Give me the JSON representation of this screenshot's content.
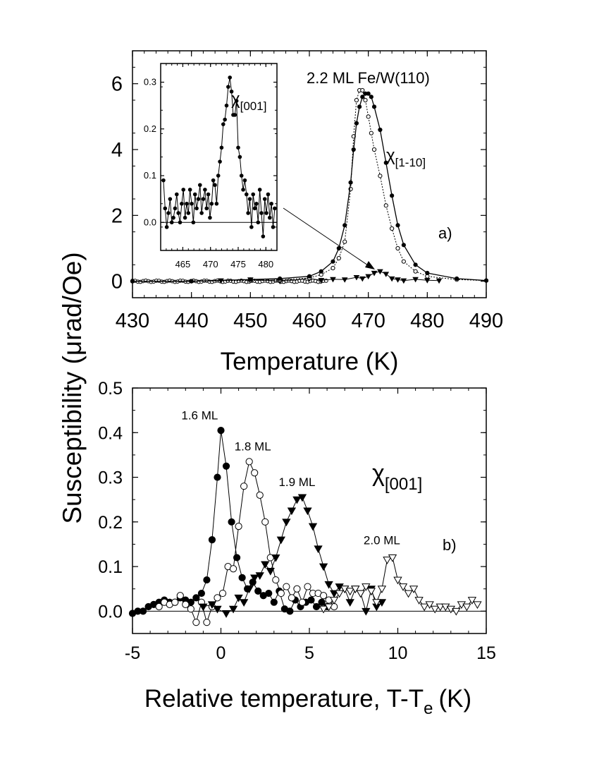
{
  "y_axis_label": "Susceptibility (μrad/Oe)",
  "chart_data": [
    {
      "panel": "a)",
      "type": "scatter",
      "title": "2.2 ML Fe/W(110)",
      "xlabel": "Temperature (K)",
      "ylabel": "Susceptibility (μrad/Oe)",
      "xlim": [
        430,
        490
      ],
      "ylim": [
        -0.5,
        7
      ],
      "xticks": [
        430,
        440,
        450,
        460,
        470,
        480,
        490
      ],
      "yticks": [
        0,
        2,
        4,
        6
      ],
      "series_label": {
        "symbol": "χ",
        "sub": "[1-10]"
      },
      "series": [
        {
          "name": "χ[1-10] filled",
          "style": "filled circles, solid line",
          "x": [
            430,
            440,
            450,
            455,
            460,
            462,
            464,
            465,
            466,
            467,
            467.5,
            468,
            468.5,
            469,
            469.5,
            470,
            470.5,
            471,
            472,
            473,
            474,
            475,
            476,
            478,
            480,
            485,
            490
          ],
          "values": [
            0,
            0,
            0.05,
            0.08,
            0.15,
            0.3,
            0.6,
            1.0,
            1.7,
            3.0,
            4.0,
            4.8,
            5.3,
            5.6,
            5.7,
            5.7,
            5.6,
            5.3,
            4.6,
            3.6,
            2.6,
            1.7,
            1.1,
            0.5,
            0.25,
            0.08,
            0.02
          ]
        },
        {
          "name": "χ[1-10] open",
          "style": "open circles, dotted line",
          "x": [
            430,
            440,
            450,
            455,
            460,
            462,
            464,
            465,
            466,
            467,
            467.5,
            468,
            468.5,
            469,
            469.5,
            470,
            470.5,
            471,
            472,
            473,
            474,
            475,
            476,
            478,
            480,
            485,
            490
          ],
          "values": [
            0,
            0,
            0.02,
            0.04,
            0.1,
            0.2,
            0.4,
            0.7,
            1.2,
            2.8,
            4.4,
            5.5,
            5.8,
            5.8,
            5.5,
            5.0,
            4.5,
            4.0,
            3.2,
            2.3,
            1.6,
            1.0,
            0.6,
            0.3,
            0.15,
            0.05,
            0.02
          ]
        },
        {
          "name": "χ[001] triangles",
          "style": "filled triangles",
          "x": [
            445,
            450,
            455,
            460,
            462,
            464,
            466,
            468,
            469,
            470,
            471,
            472,
            473,
            474,
            475,
            476,
            478,
            480,
            482
          ],
          "values": [
            0.02,
            0.05,
            0.0,
            0.08,
            0.03,
            0.06,
            0.05,
            0.12,
            0.08,
            0.15,
            0.25,
            0.3,
            0.22,
            0.08,
            0.05,
            0.02,
            0.06,
            0.03,
            0.02
          ]
        }
      ]
    },
    {
      "panel": "inset",
      "type": "line",
      "xlim": [
        461,
        482
      ],
      "ylim": [
        -0.06,
        0.34
      ],
      "xticks": [
        465,
        470,
        475,
        480
      ],
      "yticks": [
        0.0,
        0.1,
        0.2,
        0.3
      ],
      "series_label": {
        "symbol": "χ",
        "sub": "[001]"
      },
      "series": [
        {
          "name": "χ[001]",
          "style": "filled circles, solid line",
          "x": [
            461.5,
            461.8,
            462.1,
            462.4,
            462.7,
            463.0,
            463.3,
            463.6,
            463.9,
            464.2,
            464.5,
            464.8,
            465.1,
            465.4,
            465.7,
            466.0,
            466.3,
            466.6,
            466.9,
            467.2,
            467.5,
            467.8,
            468.1,
            468.4,
            468.7,
            469.0,
            469.3,
            469.6,
            469.9,
            470.2,
            470.5,
            470.8,
            471.1,
            471.4,
            471.7,
            472.0,
            472.3,
            472.6,
            472.9,
            473.2,
            473.5,
            473.8,
            474.1,
            474.4,
            474.7,
            475.0,
            475.3,
            475.6,
            475.9,
            476.2,
            476.5,
            476.8,
            477.1,
            477.4,
            477.7,
            478.0,
            478.3,
            478.6,
            478.9,
            479.2,
            479.5,
            479.8,
            480.1,
            480.4,
            480.7,
            481.0,
            481.3,
            481.6
          ],
          "values": [
            0.09,
            0.03,
            -0.01,
            0.02,
            0.05,
            0.0,
            0.01,
            0.03,
            0.06,
            0.02,
            0.0,
            0.04,
            0.07,
            0.01,
            0.04,
            0.02,
            0.07,
            0.04,
            0.0,
            0.06,
            0.03,
            0.05,
            0.08,
            0.02,
            0.05,
            0.07,
            0.03,
            0.06,
            0.01,
            0.04,
            0.09,
            0.08,
            0.04,
            0.1,
            0.13,
            0.16,
            0.21,
            0.22,
            0.25,
            0.29,
            0.31,
            0.28,
            0.23,
            0.23,
            0.26,
            0.16,
            0.14,
            0.1,
            0.07,
            0.09,
            0.06,
            0.02,
            0.05,
            -0.01,
            0.06,
            0.03,
            0.04,
            0.0,
            0.07,
            0.02,
            -0.03,
            0.05,
            0.02,
            0.06,
            0.01,
            0.04,
            -0.01,
            0.03
          ]
        }
      ]
    },
    {
      "panel": "b)",
      "type": "line",
      "xlabel": "Relative temperature, T-T",
      "xlabel_sub": "e",
      "xlabel_unit": "(K)",
      "ylabel": "Susceptibility (μrad/Oe)",
      "xlim": [
        -5,
        15
      ],
      "ylim": [
        -0.05,
        0.5
      ],
      "xticks": [
        -5,
        0,
        5,
        10,
        15
      ],
      "yticks": [
        0.0,
        0.1,
        0.2,
        0.3,
        0.4,
        0.5
      ],
      "series_label": {
        "symbol": "χ",
        "sub": "[001]"
      },
      "series": [
        {
          "name": "1.6 ML",
          "marker": "filled-circle",
          "x": [
            -5.0,
            -4.7,
            -4.4,
            -4.1,
            -3.8,
            -3.5,
            -3.2,
            -2.9,
            -2.6,
            -2.3,
            -2.0,
            -1.7,
            -1.4,
            -1.1,
            -0.8,
            -0.5,
            -0.2,
            0.0,
            0.3,
            0.6,
            0.9,
            1.2,
            1.5,
            1.8,
            2.1,
            2.4,
            2.7,
            3.0,
            3.3,
            3.6,
            3.9,
            4.2,
            4.5,
            4.8,
            5.1,
            5.4,
            5.7,
            6.0
          ],
          "values": [
            -0.005,
            0.0,
            0.0,
            0.01,
            0.015,
            0.02,
            0.025,
            0.02,
            0.02,
            0.03,
            0.025,
            0.02,
            0.03,
            0.04,
            0.07,
            0.16,
            0.3,
            0.405,
            0.325,
            0.2,
            0.12,
            0.075,
            0.05,
            0.065,
            0.045,
            0.035,
            0.04,
            0.02,
            0.045,
            0.005,
            0.0,
            0.025,
            0.01,
            0.02,
            0.025,
            0.01,
            0.02,
            0.01
          ]
        },
        {
          "name": "1.8 ML",
          "marker": "open-circle",
          "x": [
            -3.5,
            -3.2,
            -2.9,
            -2.6,
            -2.3,
            -2.0,
            -1.7,
            -1.4,
            -1.1,
            -0.8,
            -0.5,
            -0.2,
            0.1,
            0.4,
            0.7,
            1.0,
            1.3,
            1.6,
            1.9,
            2.2,
            2.5,
            2.8,
            3.1,
            3.4,
            3.7,
            4.0,
            4.3,
            4.6,
            4.9,
            5.2,
            5.5,
            5.8,
            6.1,
            6.4
          ],
          "values": [
            0.01,
            0.02,
            0.015,
            0.02,
            0.035,
            0.015,
            0.005,
            -0.025,
            0.02,
            -0.025,
            0.01,
            0.03,
            0.04,
            0.1,
            0.095,
            0.19,
            0.28,
            0.335,
            0.31,
            0.26,
            0.2,
            0.12,
            0.07,
            0.04,
            0.055,
            0.03,
            0.05,
            0.02,
            0.055,
            0.04,
            0.04,
            0.035,
            0.025,
            0.01
          ]
        },
        {
          "name": "1.9 ML",
          "marker": "filled-triangle-down",
          "x": [
            -1.0,
            -0.5,
            -0.2,
            0.3,
            0.7,
            1.0,
            1.3,
            1.6,
            1.9,
            2.2,
            2.5,
            2.8,
            3.1,
            3.4,
            3.7,
            4.0,
            4.3,
            4.6,
            4.9,
            5.2,
            5.5,
            5.8,
            6.1,
            6.4,
            6.7,
            7.0,
            7.3,
            7.6,
            7.9,
            8.2,
            8.5,
            8.8,
            9.1
          ],
          "values": [
            0.01,
            0.015,
            0.005,
            -0.005,
            0.005,
            0.03,
            0.02,
            0.05,
            0.075,
            0.08,
            0.105,
            0.09,
            0.12,
            0.16,
            0.2,
            0.225,
            0.25,
            0.255,
            0.225,
            0.19,
            0.14,
            0.1,
            0.06,
            0.04,
            0.055,
            0.05,
            0.02,
            0.05,
            0.04,
            0.0,
            0.05,
            0.01,
            0.02
          ]
        },
        {
          "name": "2.0 ML",
          "marker": "open-triangle-down",
          "x": [
            5.8,
            6.1,
            6.4,
            6.7,
            7.0,
            7.3,
            7.6,
            7.9,
            8.2,
            8.5,
            8.8,
            9.1,
            9.4,
            9.7,
            10.0,
            10.3,
            10.6,
            10.9,
            11.2,
            11.5,
            11.8,
            12.1,
            12.4,
            12.7,
            13.0,
            13.3,
            13.6,
            13.9,
            14.2,
            14.5
          ],
          "values": [
            0.005,
            0.01,
            0.025,
            0.04,
            0.05,
            0.045,
            0.05,
            0.04,
            0.055,
            0.045,
            0.02,
            0.05,
            0.115,
            0.12,
            0.07,
            0.055,
            0.04,
            0.05,
            0.025,
            0.01,
            0.015,
            0.005,
            0.01,
            0.01,
            0.005,
            0.0,
            0.015,
            0.01,
            0.025,
            0.015
          ]
        }
      ]
    }
  ]
}
